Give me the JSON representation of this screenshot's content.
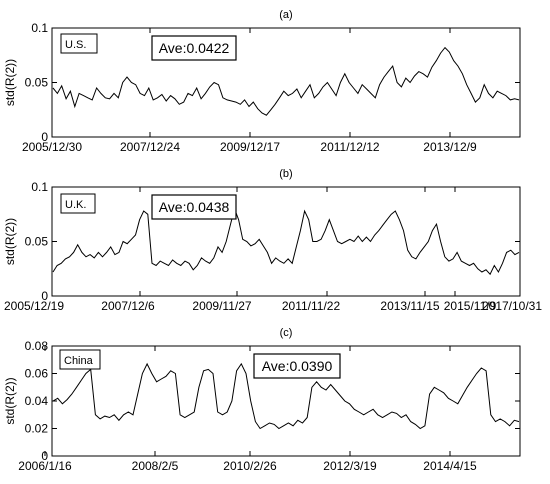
{
  "chart_data": [
    {
      "type": "line",
      "title": "(a)",
      "ylabel": "std(R(2))",
      "ylim": [
        0,
        0.1
      ],
      "yticks": [
        "0",
        "0.05",
        "0.1"
      ],
      "xtick_labels": [
        "2005/12/30",
        "2007/12/24",
        "2009/12/17",
        "2011/12/12",
        "2013/12/9"
      ],
      "legend": "U.S.",
      "annotation": "Ave:0.0422",
      "series": [
        {
          "values": [
            0.045,
            0.04,
            0.047,
            0.035,
            0.042,
            0.028,
            0.04,
            0.038,
            0.036,
            0.034,
            0.045,
            0.04,
            0.036,
            0.035,
            0.04,
            0.036,
            0.05,
            0.055,
            0.05,
            0.048,
            0.04,
            0.038,
            0.045,
            0.034,
            0.036,
            0.039,
            0.033,
            0.038,
            0.035,
            0.03,
            0.032,
            0.04,
            0.038,
            0.045,
            0.035,
            0.04,
            0.046,
            0.05,
            0.048,
            0.036,
            0.034,
            0.033,
            0.032,
            0.03,
            0.034,
            0.028,
            0.032,
            0.026,
            0.022,
            0.02,
            0.025,
            0.03,
            0.036,
            0.042,
            0.038,
            0.04,
            0.044,
            0.036,
            0.042,
            0.048,
            0.036,
            0.04,
            0.046,
            0.05,
            0.044,
            0.038,
            0.05,
            0.058,
            0.05,
            0.045,
            0.04,
            0.048,
            0.044,
            0.04,
            0.036,
            0.048,
            0.055,
            0.06,
            0.065,
            0.05,
            0.046,
            0.054,
            0.05,
            0.056,
            0.06,
            0.058,
            0.055,
            0.064,
            0.07,
            0.077,
            0.082,
            0.078,
            0.07,
            0.065,
            0.058,
            0.048,
            0.04,
            0.032,
            0.036,
            0.048,
            0.04,
            0.036,
            0.042,
            0.04,
            0.038,
            0.034,
            0.035,
            0.034
          ]
        }
      ]
    },
    {
      "type": "line",
      "title": "(b)",
      "ylabel": "std(R(2))",
      "ylim": [
        0,
        0.1
      ],
      "yticks": [
        "0",
        "0.05",
        "0.1"
      ],
      "xtick_labels": [
        "2005/12/19",
        "2007/12/6",
        "2009/11/27",
        "2011/11/22",
        "2013/11/15",
        "2015/11/9",
        "2017/10/31"
      ],
      "legend": "U.K.",
      "annotation": "Ave:0.0438",
      "series": [
        {
          "values": [
            0.022,
            0.028,
            0.03,
            0.034,
            0.036,
            0.04,
            0.047,
            0.04,
            0.036,
            0.038,
            0.035,
            0.04,
            0.036,
            0.04,
            0.045,
            0.038,
            0.04,
            0.05,
            0.048,
            0.052,
            0.056,
            0.07,
            0.078,
            0.075,
            0.03,
            0.028,
            0.032,
            0.03,
            0.028,
            0.033,
            0.03,
            0.028,
            0.032,
            0.03,
            0.024,
            0.028,
            0.035,
            0.032,
            0.03,
            0.035,
            0.045,
            0.04,
            0.05,
            0.065,
            0.08,
            0.07,
            0.052,
            0.05,
            0.046,
            0.048,
            0.052,
            0.046,
            0.04,
            0.03,
            0.035,
            0.032,
            0.03,
            0.034,
            0.03,
            0.045,
            0.06,
            0.078,
            0.07,
            0.05,
            0.05,
            0.052,
            0.06,
            0.07,
            0.06,
            0.05,
            0.048,
            0.05,
            0.052,
            0.05,
            0.055,
            0.05,
            0.054,
            0.05,
            0.056,
            0.06,
            0.065,
            0.07,
            0.075,
            0.078,
            0.07,
            0.06,
            0.042,
            0.036,
            0.034,
            0.04,
            0.045,
            0.05,
            0.06,
            0.066,
            0.05,
            0.036,
            0.032,
            0.034,
            0.04,
            0.032,
            0.03,
            0.028,
            0.03,
            0.025,
            0.022,
            0.024,
            0.02,
            0.028,
            0.022,
            0.03,
            0.04,
            0.042,
            0.038,
            0.04
          ]
        }
      ]
    },
    {
      "type": "line",
      "title": "(c)",
      "ylabel": "std(R(2))",
      "ylim": [
        0,
        0.08
      ],
      "yticks": [
        "0",
        "0.02",
        "0.04",
        "0.06",
        "0.08"
      ],
      "xtick_labels": [
        "2006/1/16",
        "2008/2/5",
        "2010/2/26",
        "2012/3/19",
        "2014/4/15"
      ],
      "legend": "China",
      "annotation": "Ave:0.0390",
      "series": [
        {
          "values": [
            0.04,
            0.042,
            0.038,
            0.041,
            0.045,
            0.05,
            0.055,
            0.06,
            0.063,
            0.03,
            0.027,
            0.029,
            0.028,
            0.03,
            0.026,
            0.03,
            0.032,
            0.03,
            0.045,
            0.06,
            0.067,
            0.06,
            0.054,
            0.056,
            0.058,
            0.062,
            0.06,
            0.03,
            0.028,
            0.03,
            0.032,
            0.05,
            0.062,
            0.063,
            0.06,
            0.032,
            0.03,
            0.032,
            0.04,
            0.062,
            0.067,
            0.06,
            0.04,
            0.025,
            0.02,
            0.022,
            0.024,
            0.023,
            0.02,
            0.022,
            0.024,
            0.022,
            0.026,
            0.024,
            0.028,
            0.05,
            0.054,
            0.05,
            0.048,
            0.052,
            0.048,
            0.044,
            0.04,
            0.038,
            0.034,
            0.032,
            0.03,
            0.032,
            0.034,
            0.03,
            0.028,
            0.03,
            0.032,
            0.031,
            0.028,
            0.03,
            0.025,
            0.023,
            0.02,
            0.022,
            0.045,
            0.05,
            0.048,
            0.046,
            0.042,
            0.04,
            0.038,
            0.044,
            0.05,
            0.055,
            0.06,
            0.064,
            0.062,
            0.03,
            0.025,
            0.027,
            0.025,
            0.022,
            0.026,
            0.025
          ]
        }
      ]
    }
  ]
}
